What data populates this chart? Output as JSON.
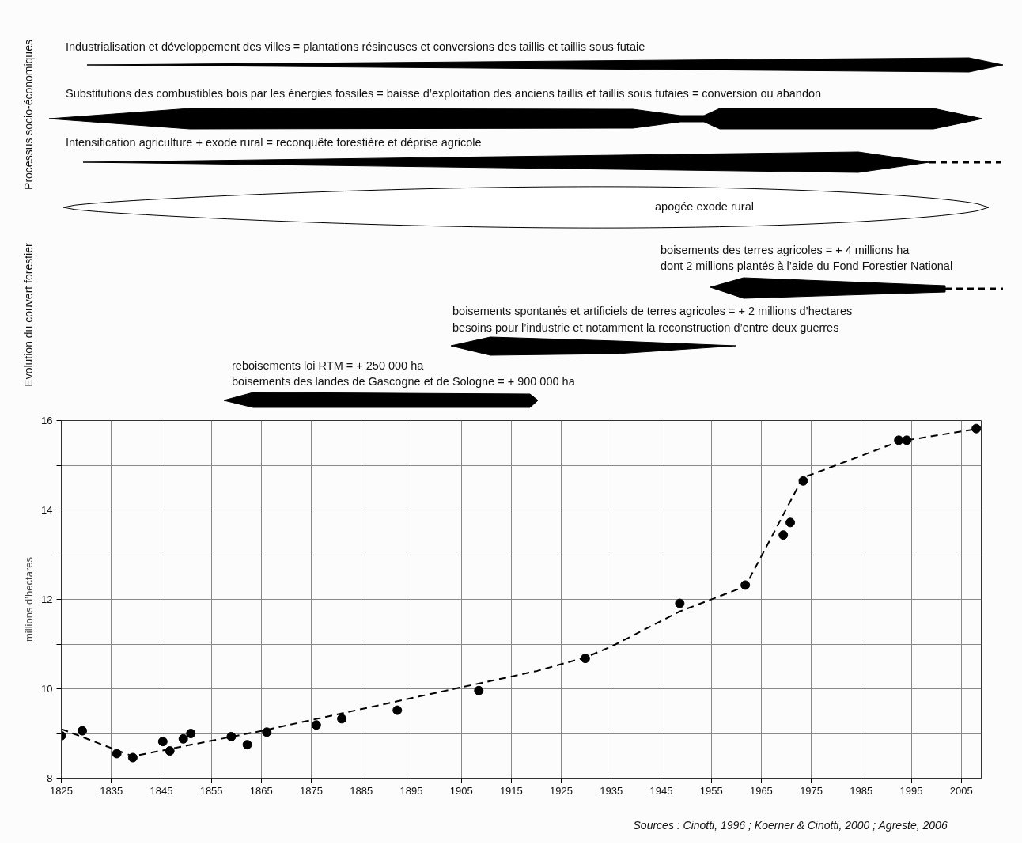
{
  "chart_data": {
    "type": "scatter",
    "ylabel": "millions d’hectares",
    "xlim": [
      1825,
      2009
    ],
    "ylim": [
      8,
      16
    ],
    "xticks": [
      1825,
      1835,
      1845,
      1855,
      1865,
      1875,
      1885,
      1895,
      1905,
      1915,
      1925,
      1935,
      1945,
      1955,
      1965,
      1975,
      1985,
      1995,
      2005
    ],
    "yticks": [
      8,
      {
        "value": 9,
        "label": null
      },
      10,
      {
        "value": 11,
        "label": null
      },
      12,
      {
        "value": 13,
        "label": null
      },
      14,
      {
        "value": 15,
        "label": null
      },
      16
    ],
    "grid": true,
    "series": [
      {
        "color": "#000000",
        "marker": "circle",
        "x": [
          1825,
          1829.2,
          1836.1,
          1839.3,
          1845.3,
          1846.7,
          1849.4,
          1850.9,
          1859,
          1862.2,
          1866.1,
          1876,
          1881.1,
          1892.2,
          1908.5,
          1929.8,
          1948.7,
          1961.8,
          1969.4,
          1970.8,
          1973.4,
          1992.5,
          1994.1,
          2008
        ],
        "values": [
          8.95,
          9.06,
          8.55,
          8.46,
          8.82,
          8.61,
          8.88,
          9.0,
          8.93,
          8.75,
          9.03,
          9.19,
          9.33,
          9.52,
          9.96,
          10.68,
          11.91,
          12.32,
          13.44,
          13.72,
          14.65,
          15.56,
          15.56,
          15.82
        ]
      },
      {
        "type": "line",
        "color": "#000000",
        "line_style": "dashed",
        "x": [
          1825,
          1839.3,
          1866,
          1903.6,
          1920.2,
          1929.8,
          1935.1,
          1948.7,
          1961.8,
          1965.8,
          1973.3,
          1992.5,
          2008
        ],
        "values": [
          9.1,
          8.49,
          9.08,
          10.0,
          10.4,
          10.7,
          10.95,
          11.73,
          12.29,
          13.13,
          14.72,
          15.53,
          15.81
        ]
      }
    ],
    "annotations": [
      "Processus socio-économiques",
      "Evolution du couvert forestier",
      "Industrialisation et développement des villes = plantations résineuses et conversions des taillis et taillis sous futaie",
      "Substitutions des combustibles bois par les énergies fossiles = baisse d’exploitation des anciens taillis et taillis sous futaies = conversion ou abandon",
      "Intensification agriculture + exode rural = reconquête forestière et déprise agricole",
      "apogée exode rural",
      "boisements des terres agricoles = + 4 millions ha",
      "dont 2 millions plantés à l’aide du Fond Forestier National",
      "boisements spontanés et artificiels de terres agricoles = + 2 millions d’hectares",
      "besoins pour l’industrie et notamment la reconstruction d’entre deux guerres",
      "reboisements loi RTM = + 250 000 ha",
      "boisements des landes de Gascogne et de Sologne = + 900 000 ha",
      "Sources : Cinotti, 1996 ; Koerner & Cinotti, 2000 ; Agreste, 2006"
    ]
  }
}
